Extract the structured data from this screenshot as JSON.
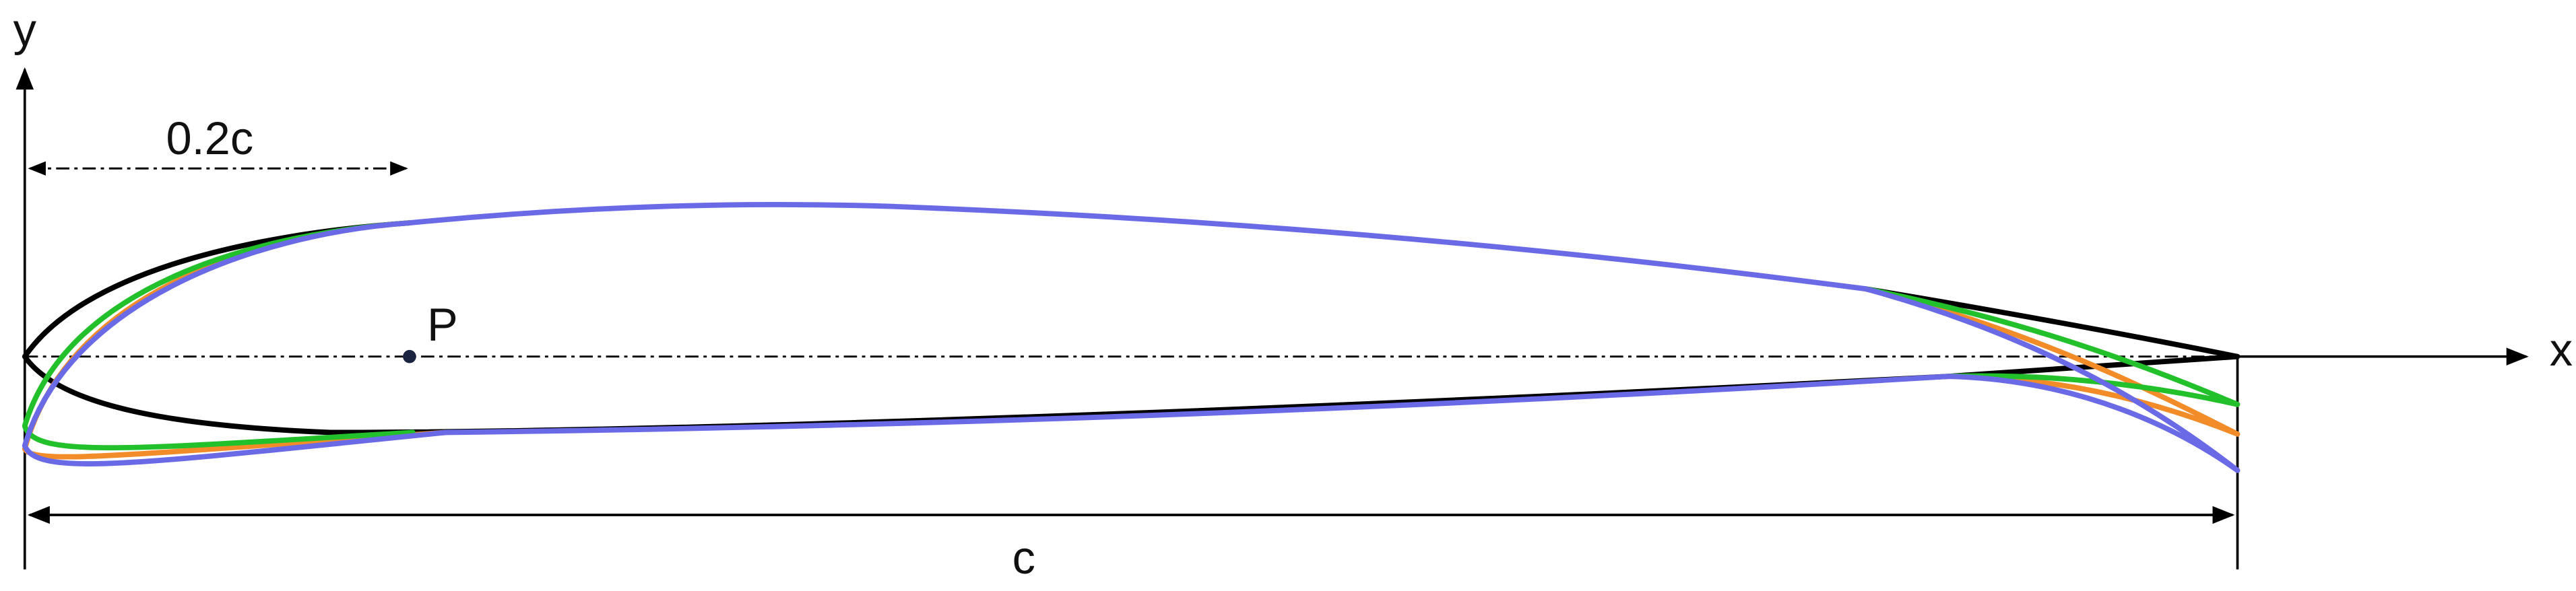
{
  "axes": {
    "y_label": "y",
    "x_label": "x"
  },
  "dimensions": {
    "leading_edge": "0.2c",
    "chord": "c"
  },
  "points": {
    "pivot": "P"
  }
}
